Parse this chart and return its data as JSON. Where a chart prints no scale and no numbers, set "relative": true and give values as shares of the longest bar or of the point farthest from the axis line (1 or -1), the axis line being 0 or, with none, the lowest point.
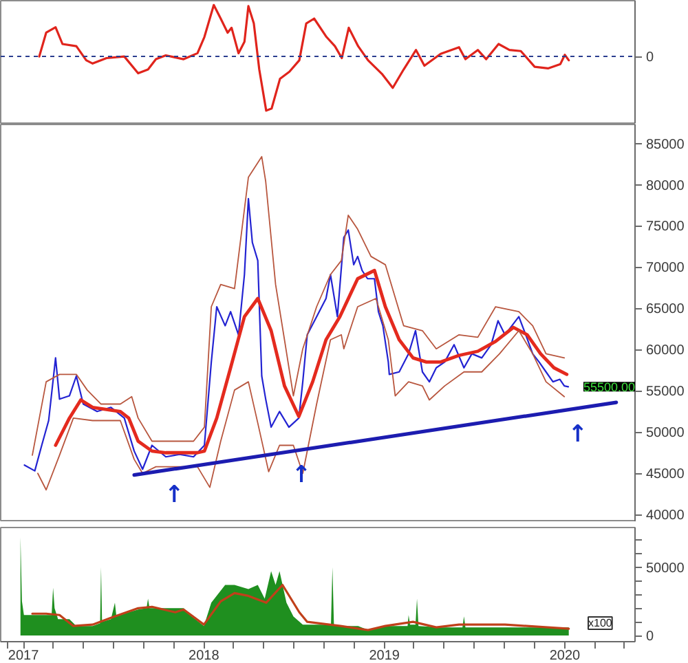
{
  "chart_data": [
    {
      "type": "line",
      "relative": true,
      "x": [
        "2017-02-02",
        "2017-02-16",
        "2017-03-07",
        "2017-03-21",
        "2017-04-18",
        "2017-05-08",
        "2017-05-21",
        "2017-06-18",
        "2017-07-24",
        "2017-08-21",
        "2017-09-10",
        "2017-09-26",
        "2017-10-16",
        "2017-11-21",
        "2017-12-19",
        "2018-01-02",
        "2018-01-21",
        "2018-02-04",
        "2018-02-18",
        "2018-02-26",
        "2018-03-12",
        "2018-03-24",
        "2018-04-01",
        "2018-04-12",
        "2018-04-23",
        "2018-05-07",
        "2018-05-18",
        "2018-06-04",
        "2018-06-23",
        "2018-07-13",
        "2018-07-27",
        "2018-08-12",
        "2018-09-06",
        "2018-09-23",
        "2018-10-07",
        "2018-10-21",
        "2018-11-09",
        "2018-11-29",
        "2018-12-27",
        "2019-01-18",
        "2019-02-09",
        "2019-03-06",
        "2019-03-23",
        "2019-04-25",
        "2019-06-01",
        "2019-06-14",
        "2019-07-09",
        "2019-07-26",
        "2019-08-20",
        "2019-09-11",
        "2019-10-04",
        "2019-11-01",
        "2019-11-28",
        "2019-12-23",
        "2020-01-01",
        "2020-01-09"
      ],
      "series": [
        {
          "color": "#e0241c",
          "values": [
            0,
            0.44,
            0.54,
            0.23,
            0.19,
            -0.07,
            -0.13,
            -0.03,
            0,
            -0.31,
            -0.24,
            -0.05,
            0.02,
            -0.05,
            0.06,
            0.36,
            0.95,
            0.7,
            0.44,
            0.53,
            0.06,
            0.27,
            0.93,
            0.61,
            -0.24,
            -1,
            -0.96,
            -0.41,
            -0.28,
            -0.07,
            0.61,
            0.7,
            0.36,
            0.19,
            -0.03,
            0.53,
            0.19,
            -0.07,
            -0.32,
            -0.58,
            -0.24,
            0.12,
            -0.17,
            0.05,
            0.17,
            -0.05,
            0.12,
            -0.05,
            0.23,
            0.12,
            0.1,
            -0.19,
            -0.22,
            -0.14,
            0.03,
            -0.07
          ]
        }
      ],
      "xlim": [
        "2016-11-16",
        "2020-05-22"
      ],
      "ref_lines": [
        {
          "axis": "y",
          "value": 0,
          "label": "0",
          "color": "#2a3d8f",
          "line_style": "dashed"
        }
      ],
      "tick_labels": false
    },
    {
      "type": "line",
      "series": [
        {
          "color": "#2323d2",
          "x": [
            "2017-01-03",
            "2017-01-24",
            "2017-02-07",
            "2017-02-21",
            "2017-03-07",
            "2017-03-15",
            "2017-04-04",
            "2017-04-18",
            "2017-05-02",
            "2017-05-30",
            "2017-06-27",
            "2017-07-24",
            "2017-08-13",
            "2017-08-30",
            "2017-09-18",
            "2017-10-16",
            "2017-11-13",
            "2017-12-11",
            "2018-01-02",
            "2018-01-16",
            "2018-01-27",
            "2018-02-13",
            "2018-02-24",
            "2018-03-12",
            "2018-03-24",
            "2018-04-01",
            "2018-04-09",
            "2018-04-20",
            "2018-04-28",
            "2018-05-06",
            "2018-05-17",
            "2018-06-03",
            "2018-06-22",
            "2018-07-12",
            "2018-07-20",
            "2018-07-29",
            "2018-08-17",
            "2018-09-05",
            "2018-09-14",
            "2018-09-28",
            "2018-10-11",
            "2018-10-20",
            "2018-10-31",
            "2018-11-08",
            "2018-11-17",
            "2018-11-28",
            "2018-12-12",
            "2018-12-20",
            "2018-12-29",
            "2019-01-09",
            "2019-01-11",
            "2019-01-31",
            "2019-02-19",
            "2019-03-05",
            "2019-03-19",
            "2019-04-02",
            "2019-04-16",
            "2019-05-03",
            "2019-05-22",
            "2019-06-11",
            "2019-06-27",
            "2019-07-17",
            "2019-08-05",
            "2019-08-19",
            "2019-09-02",
            "2019-09-16",
            "2019-09-30",
            "2019-10-14",
            "2019-10-28",
            "2019-11-10",
            "2019-11-24",
            "2019-12-08",
            "2019-12-22",
            "2019-12-31",
            "2020-01-08"
          ],
          "values": [
            46000,
            45300,
            48400,
            51400,
            59000,
            54000,
            54400,
            56800,
            53400,
            52500,
            53000,
            51700,
            47700,
            45500,
            48400,
            47000,
            47300,
            47000,
            48400,
            58500,
            65200,
            62900,
            64600,
            61800,
            69100,
            78300,
            73000,
            70800,
            56800,
            54000,
            50600,
            52500,
            50600,
            51700,
            56100,
            61800,
            64000,
            66200,
            69100,
            64000,
            73600,
            74500,
            70300,
            71300,
            69600,
            68600,
            68600,
            64600,
            62900,
            58500,
            57000,
            57300,
            59500,
            62300,
            57300,
            56100,
            57800,
            58500,
            60600,
            57800,
            59500,
            59000,
            60600,
            63500,
            61800,
            62900,
            64000,
            61800,
            59500,
            58500,
            57300,
            56100,
            56400,
            55600,
            55500
          ]
        },
        {
          "color": "#e42a1e",
          "x": [
            "2017-03-07",
            "2017-04-04",
            "2017-04-27",
            "2017-05-21",
            "2017-07-16",
            "2017-08-02",
            "2017-08-21",
            "2017-09-18",
            "2017-10-16",
            "2017-12-19",
            "2018-01-02",
            "2018-01-27",
            "2018-02-24",
            "2018-03-24",
            "2018-04-20",
            "2018-05-17",
            "2018-06-13",
            "2018-07-12",
            "2018-08-09",
            "2018-09-05",
            "2018-10-03",
            "2018-11-08",
            "2018-12-12",
            "2019-01-03",
            "2019-01-31",
            "2019-02-28",
            "2019-03-27",
            "2019-04-25",
            "2019-06-01",
            "2019-07-09",
            "2019-08-14",
            "2019-09-19",
            "2019-10-17",
            "2019-11-13",
            "2019-12-10",
            "2020-01-05"
          ],
          "values": [
            48400,
            51700,
            53900,
            53000,
            52500,
            51700,
            48900,
            47700,
            47500,
            47500,
            47700,
            51700,
            57800,
            64000,
            66200,
            62300,
            55600,
            51900,
            56100,
            61200,
            64000,
            68600,
            69600,
            65200,
            61200,
            59000,
            58500,
            58500,
            59300,
            59800,
            61000,
            62700,
            61800,
            59500,
            57800,
            57000
          ]
        },
        {
          "color": "#b8563e",
          "x": [
            "2017-01-19",
            "2017-02-16",
            "2017-03-15",
            "2017-04-18",
            "2017-05-10",
            "2017-06-07",
            "2017-07-16",
            "2017-08-08",
            "2017-08-21",
            "2017-09-18",
            "2017-12-11",
            "2018-01-02",
            "2018-01-16",
            "2018-02-04",
            "2018-03-04",
            "2018-04-01",
            "2018-04-28",
            "2018-05-06",
            "2018-05-26",
            "2018-06-13",
            "2018-07-01",
            "2018-07-20",
            "2018-08-17",
            "2018-09-14",
            "2018-10-06",
            "2018-10-20",
            "2018-11-08",
            "2018-12-05",
            "2019-01-03",
            "2019-02-09",
            "2019-03-19",
            "2019-04-16",
            "2019-06-01",
            "2019-07-09",
            "2019-08-14",
            "2019-09-30",
            "2019-10-28",
            "2019-11-24",
            "2019-12-31"
          ],
          "values": [
            47200,
            56100,
            57000,
            57000,
            55100,
            53400,
            53400,
            54300,
            51700,
            48900,
            48900,
            50600,
            65200,
            67900,
            67400,
            80900,
            83400,
            80400,
            67900,
            61200,
            54400,
            60100,
            65200,
            69100,
            70800,
            76300,
            74600,
            71300,
            70300,
            62900,
            62300,
            60100,
            61800,
            61500,
            65200,
            64600,
            62900,
            59500,
            59000
          ]
        },
        {
          "color": "#b8563e",
          "x": [
            "2017-01-30",
            "2017-02-16",
            "2017-03-15",
            "2017-04-12",
            "2017-05-21",
            "2017-07-16",
            "2017-08-13",
            "2017-08-30",
            "2017-09-26",
            "2017-12-19",
            "2018-01-13",
            "2018-02-04",
            "2018-03-04",
            "2018-04-01",
            "2018-04-20",
            "2018-05-12",
            "2018-06-03",
            "2018-07-01",
            "2018-07-20",
            "2018-08-17",
            "2018-09-14",
            "2018-10-06",
            "2018-10-11",
            "2018-11-08",
            "2018-12-15",
            "2019-01-09",
            "2019-01-23",
            "2019-02-19",
            "2019-03-19",
            "2019-04-02",
            "2019-05-03",
            "2019-06-11",
            "2019-07-17",
            "2019-08-22",
            "2019-09-30",
            "2019-10-28",
            "2019-11-24",
            "2019-12-31"
          ],
          "values": [
            45000,
            43000,
            47200,
            51700,
            51400,
            51400,
            46700,
            45000,
            45800,
            45800,
            43300,
            48900,
            55100,
            56100,
            51100,
            45200,
            48400,
            48400,
            45000,
            53400,
            61200,
            61800,
            60100,
            65200,
            66200,
            61200,
            54400,
            56100,
            55600,
            53900,
            55600,
            57300,
            57300,
            59500,
            62300,
            59500,
            56100,
            54300
          ]
        },
        {
          "color": "#1c1cb0",
          "x": [
            "2017-08-13",
            "2020-04-14"
          ],
          "values": [
            44800,
            53600
          ]
        }
      ],
      "xlim": [
        "2016-11-16",
        "2020-05-22"
      ],
      "ylim": [
        39100,
        87300
      ],
      "yticks": [
        40000,
        45000,
        50000,
        55000,
        60000,
        65000,
        70000,
        75000,
        80000,
        85000
      ],
      "tick_labels": "y",
      "annotations": [
        {
          "text": "↑",
          "x": "2017-11-02",
          "y": 45500
        },
        {
          "text": "↑",
          "x": "2018-07-17",
          "y": 47900
        },
        {
          "text": "↑",
          "x": "2020-01-27",
          "y": 52900
        },
        "55500.00"
      ]
    },
    {
      "type": "area",
      "x": [
        "2016-12-26",
        "2016-12-29",
        "2017-01-02",
        "2017-01-24",
        "2017-02-16",
        "2017-02-27",
        "2017-03-02",
        "2017-03-05",
        "2017-03-12",
        "2017-04-04",
        "2017-04-18",
        "2017-05-21",
        "2017-06-05",
        "2017-06-07",
        "2017-06-09",
        "2017-06-27",
        "2017-07-05",
        "2017-07-08",
        "2017-08-02",
        "2017-08-21",
        "2017-09-07",
        "2017-09-10",
        "2017-09-13",
        "2017-10-25",
        "2017-11-21",
        "2017-12-11",
        "2018-01-01",
        "2018-01-16",
        "2018-02-13",
        "2018-03-04",
        "2018-04-01",
        "2018-04-20",
        "2018-05-04",
        "2018-05-17",
        "2018-05-26",
        "2018-06-03",
        "2018-06-17",
        "2018-07-01",
        "2018-07-20",
        "2018-08-26",
        "2018-09-15",
        "2018-09-18",
        "2018-09-21",
        "2018-10-04",
        "2018-11-09",
        "2018-11-29",
        "2018-12-15",
        "2019-01-03",
        "2019-02-09",
        "2019-02-17",
        "2019-02-19",
        "2019-02-22",
        "2019-03-05",
        "2019-03-08",
        "2019-03-11",
        "2019-04-25",
        "2019-06-08",
        "2019-06-11",
        "2019-06-14",
        "2019-09-11",
        "2019-12-04",
        "2020-01-09"
      ],
      "series": [
        {
          "color": "#1f8f1f",
          "values": [
            72000,
            25000,
            15000,
            15000,
            15000,
            15000,
            35000,
            20000,
            12000,
            12000,
            7000,
            7000,
            9000,
            50000,
            10000,
            12000,
            24000,
            14000,
            17000,
            19000,
            20000,
            27000,
            20000,
            20000,
            20000,
            13000,
            7000,
            24000,
            37000,
            37000,
            34000,
            37000,
            27000,
            47000,
            37000,
            47000,
            24000,
            14000,
            8000,
            8000,
            8000,
            50000,
            8000,
            7000,
            7000,
            4000,
            5000,
            7000,
            7000,
            7000,
            15000,
            8000,
            8000,
            27000,
            7000,
            6000,
            6000,
            14000,
            6000,
            6000,
            6000,
            6000
          ]
        },
        {
          "type": "line",
          "color": "#c0401a",
          "x": [
            "2017-01-19",
            "2017-02-16",
            "2017-03-15",
            "2017-04-12",
            "2017-05-21",
            "2017-06-27",
            "2017-08-21",
            "2017-09-18",
            "2017-11-04",
            "2017-11-21",
            "2018-01-01",
            "2018-02-04",
            "2018-03-04",
            "2018-04-01",
            "2018-05-07",
            "2018-06-09",
            "2018-07-13",
            "2018-07-29",
            "2018-10-04",
            "2018-11-29",
            "2019-01-03",
            "2019-02-28",
            "2019-04-16",
            "2019-06-01",
            "2019-09-02",
            "2020-01-09"
          ],
          "values": [
            16000,
            16000,
            15000,
            7000,
            8000,
            13000,
            20000,
            21000,
            17000,
            19000,
            8000,
            25000,
            31000,
            29000,
            24000,
            37000,
            17000,
            10000,
            7000,
            4000,
            7000,
            10000,
            6000,
            8000,
            8000,
            5000
          ]
        }
      ],
      "xlim": [
        "2016-11-16",
        "2020-05-22"
      ],
      "ylim": [
        -4500,
        79000
      ],
      "yticks": [
        0,
        {
          "value": 10000,
          "label": null
        },
        {
          "value": 20000,
          "label": null
        },
        {
          "value": 30000,
          "label": null
        },
        {
          "value": 40000,
          "label": null
        },
        50000,
        {
          "value": 60000,
          "label": null
        },
        {
          "value": 70000,
          "label": null
        }
      ],
      "xticks": [
        {
          "value": "2016-12-01",
          "label": null
        },
        {
          "value": "2017-01-01",
          "label": "2017"
        },
        {
          "value": "2017-03-01",
          "label": null
        },
        {
          "value": "2017-05-01",
          "label": null
        },
        {
          "value": "2017-07-01",
          "label": null
        },
        {
          "value": "2017-09-01",
          "label": null
        },
        {
          "value": "2017-11-01",
          "label": null
        },
        {
          "value": "2018-01-01",
          "label": "2018"
        },
        {
          "value": "2018-03-01",
          "label": null
        },
        {
          "value": "2018-05-01",
          "label": null
        },
        {
          "value": "2018-07-01",
          "label": null
        },
        {
          "value": "2018-09-01",
          "label": null
        },
        {
          "value": "2018-11-01",
          "label": null
        },
        {
          "value": "2019-01-01",
          "label": "2019"
        },
        {
          "value": "2019-03-01",
          "label": null
        },
        {
          "value": "2019-05-01",
          "label": null
        },
        {
          "value": "2019-07-01",
          "label": null
        },
        {
          "value": "2019-09-01",
          "label": null
        },
        {
          "value": "2019-11-01",
          "label": null
        },
        {
          "value": "2020-01-01",
          "label": "2020"
        },
        {
          "value": "2020-03-01",
          "label": null
        },
        {
          "value": "2020-05-01",
          "label": null
        }
      ],
      "annotations": [
        "x100"
      ]
    }
  ]
}
